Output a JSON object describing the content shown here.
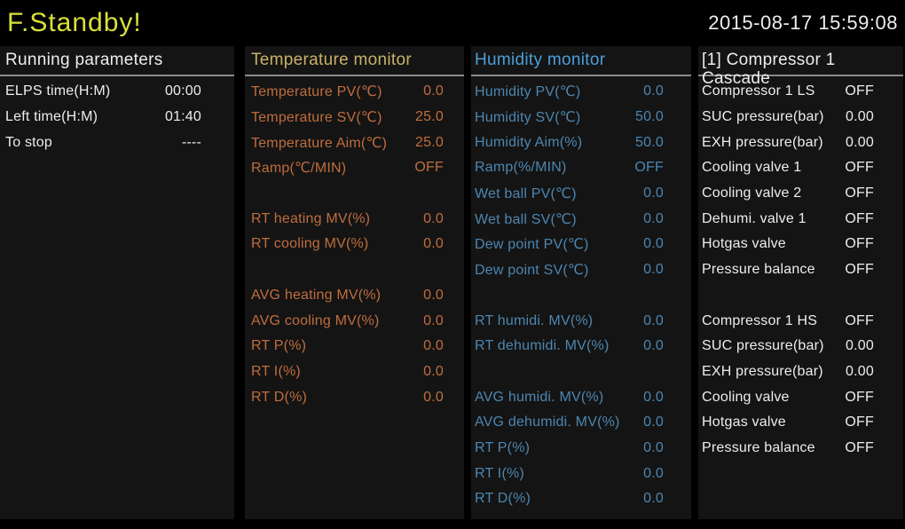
{
  "header": {
    "status_title": "F.Standby!",
    "datetime": "2015-08-17 15:59:08"
  },
  "colors": {
    "background": "#000000",
    "panel_background": "#141414",
    "status_title": "#d7e03c",
    "white_text": "#ededed",
    "temperature_header": "#c8b169",
    "temperature_text": "#bf6d3e",
    "humidity_header": "#4d9ed8",
    "humidity_text": "#4d86b0",
    "header_divider": "#8a8a8a"
  },
  "panels": [
    {
      "id": "running-parameters",
      "title": "Running parameters",
      "rows": [
        {
          "label": "ELPS time(H:M)",
          "value": "00:00"
        },
        {
          "label": "Left time(H:M)",
          "value": "01:40"
        },
        {
          "label": "To stop",
          "value": "----"
        }
      ]
    },
    {
      "id": "temperature-monitor",
      "title": "Temperature monitor",
      "rows": [
        {
          "label": "Temperature PV(℃)",
          "value": "0.0"
        },
        {
          "label": "Temperature SV(℃)",
          "value": "25.0"
        },
        {
          "label": "Temperature Aim(℃)",
          "value": "25.0"
        },
        {
          "label": "Ramp(℃/MIN)",
          "value": "OFF"
        },
        {
          "label": "",
          "value": ""
        },
        {
          "label": "RT heating MV(%)",
          "value": "0.0"
        },
        {
          "label": "RT cooling MV(%)",
          "value": "0.0"
        },
        {
          "label": "",
          "value": ""
        },
        {
          "label": "AVG heating MV(%)",
          "value": "0.0"
        },
        {
          "label": "AVG cooling MV(%)",
          "value": "0.0"
        },
        {
          "label": "RT P(%)",
          "value": "0.0"
        },
        {
          "label": "RT I(%)",
          "value": "0.0"
        },
        {
          "label": "RT D(%)",
          "value": "0.0"
        }
      ]
    },
    {
      "id": "humidity-monitor",
      "title": "Humidity monitor",
      "rows": [
        {
          "label": "Humidity PV(℃)",
          "value": "0.0"
        },
        {
          "label": "Humidity SV(℃)",
          "value": "50.0"
        },
        {
          "label": "Humidity Aim(%)",
          "value": "50.0"
        },
        {
          "label": "Ramp(%/MIN)",
          "value": "OFF"
        },
        {
          "label": "Wet ball PV(℃)",
          "value": "0.0"
        },
        {
          "label": "Wet ball SV(℃)",
          "value": "0.0"
        },
        {
          "label": "Dew point PV(℃)",
          "value": "0.0"
        },
        {
          "label": "Dew point SV(℃)",
          "value": "0.0"
        },
        {
          "label": "",
          "value": ""
        },
        {
          "label": "RT humidi. MV(%)",
          "value": "0.0"
        },
        {
          "label": "RT dehumidi. MV(%)",
          "value": "0.0"
        },
        {
          "label": "",
          "value": ""
        },
        {
          "label": "AVG humidi. MV(%)",
          "value": "0.0"
        },
        {
          "label": "AVG dehumidi. MV(%)",
          "value": "0.0"
        },
        {
          "label": "RT P(%)",
          "value": "0.0"
        },
        {
          "label": "RT I(%)",
          "value": "0.0"
        },
        {
          "label": "RT D(%)",
          "value": "0.0"
        }
      ]
    },
    {
      "id": "compressor-1-cascade",
      "title": "[1] Compressor 1\nCascade",
      "rows": [
        {
          "label": "Compressor 1 LS",
          "value": "OFF"
        },
        {
          "label": "SUC pressure(bar)",
          "value": "0.00"
        },
        {
          "label": "EXH pressure(bar)",
          "value": "0.00"
        },
        {
          "label": "Cooling valve 1",
          "value": "OFF"
        },
        {
          "label": "Cooling valve 2",
          "value": "OFF"
        },
        {
          "label": "Dehumi. valve 1",
          "value": "OFF"
        },
        {
          "label": "Hotgas valve",
          "value": "OFF"
        },
        {
          "label": "Pressure balance",
          "value": "OFF"
        },
        {
          "label": "",
          "value": ""
        },
        {
          "label": "Compressor 1 HS",
          "value": "OFF"
        },
        {
          "label": "SUC pressure(bar)",
          "value": "0.00"
        },
        {
          "label": "EXH pressure(bar)",
          "value": "0.00"
        },
        {
          "label": "Cooling valve",
          "value": "OFF"
        },
        {
          "label": "Hotgas valve",
          "value": "OFF"
        },
        {
          "label": "Pressure balance",
          "value": "OFF"
        }
      ]
    }
  ]
}
